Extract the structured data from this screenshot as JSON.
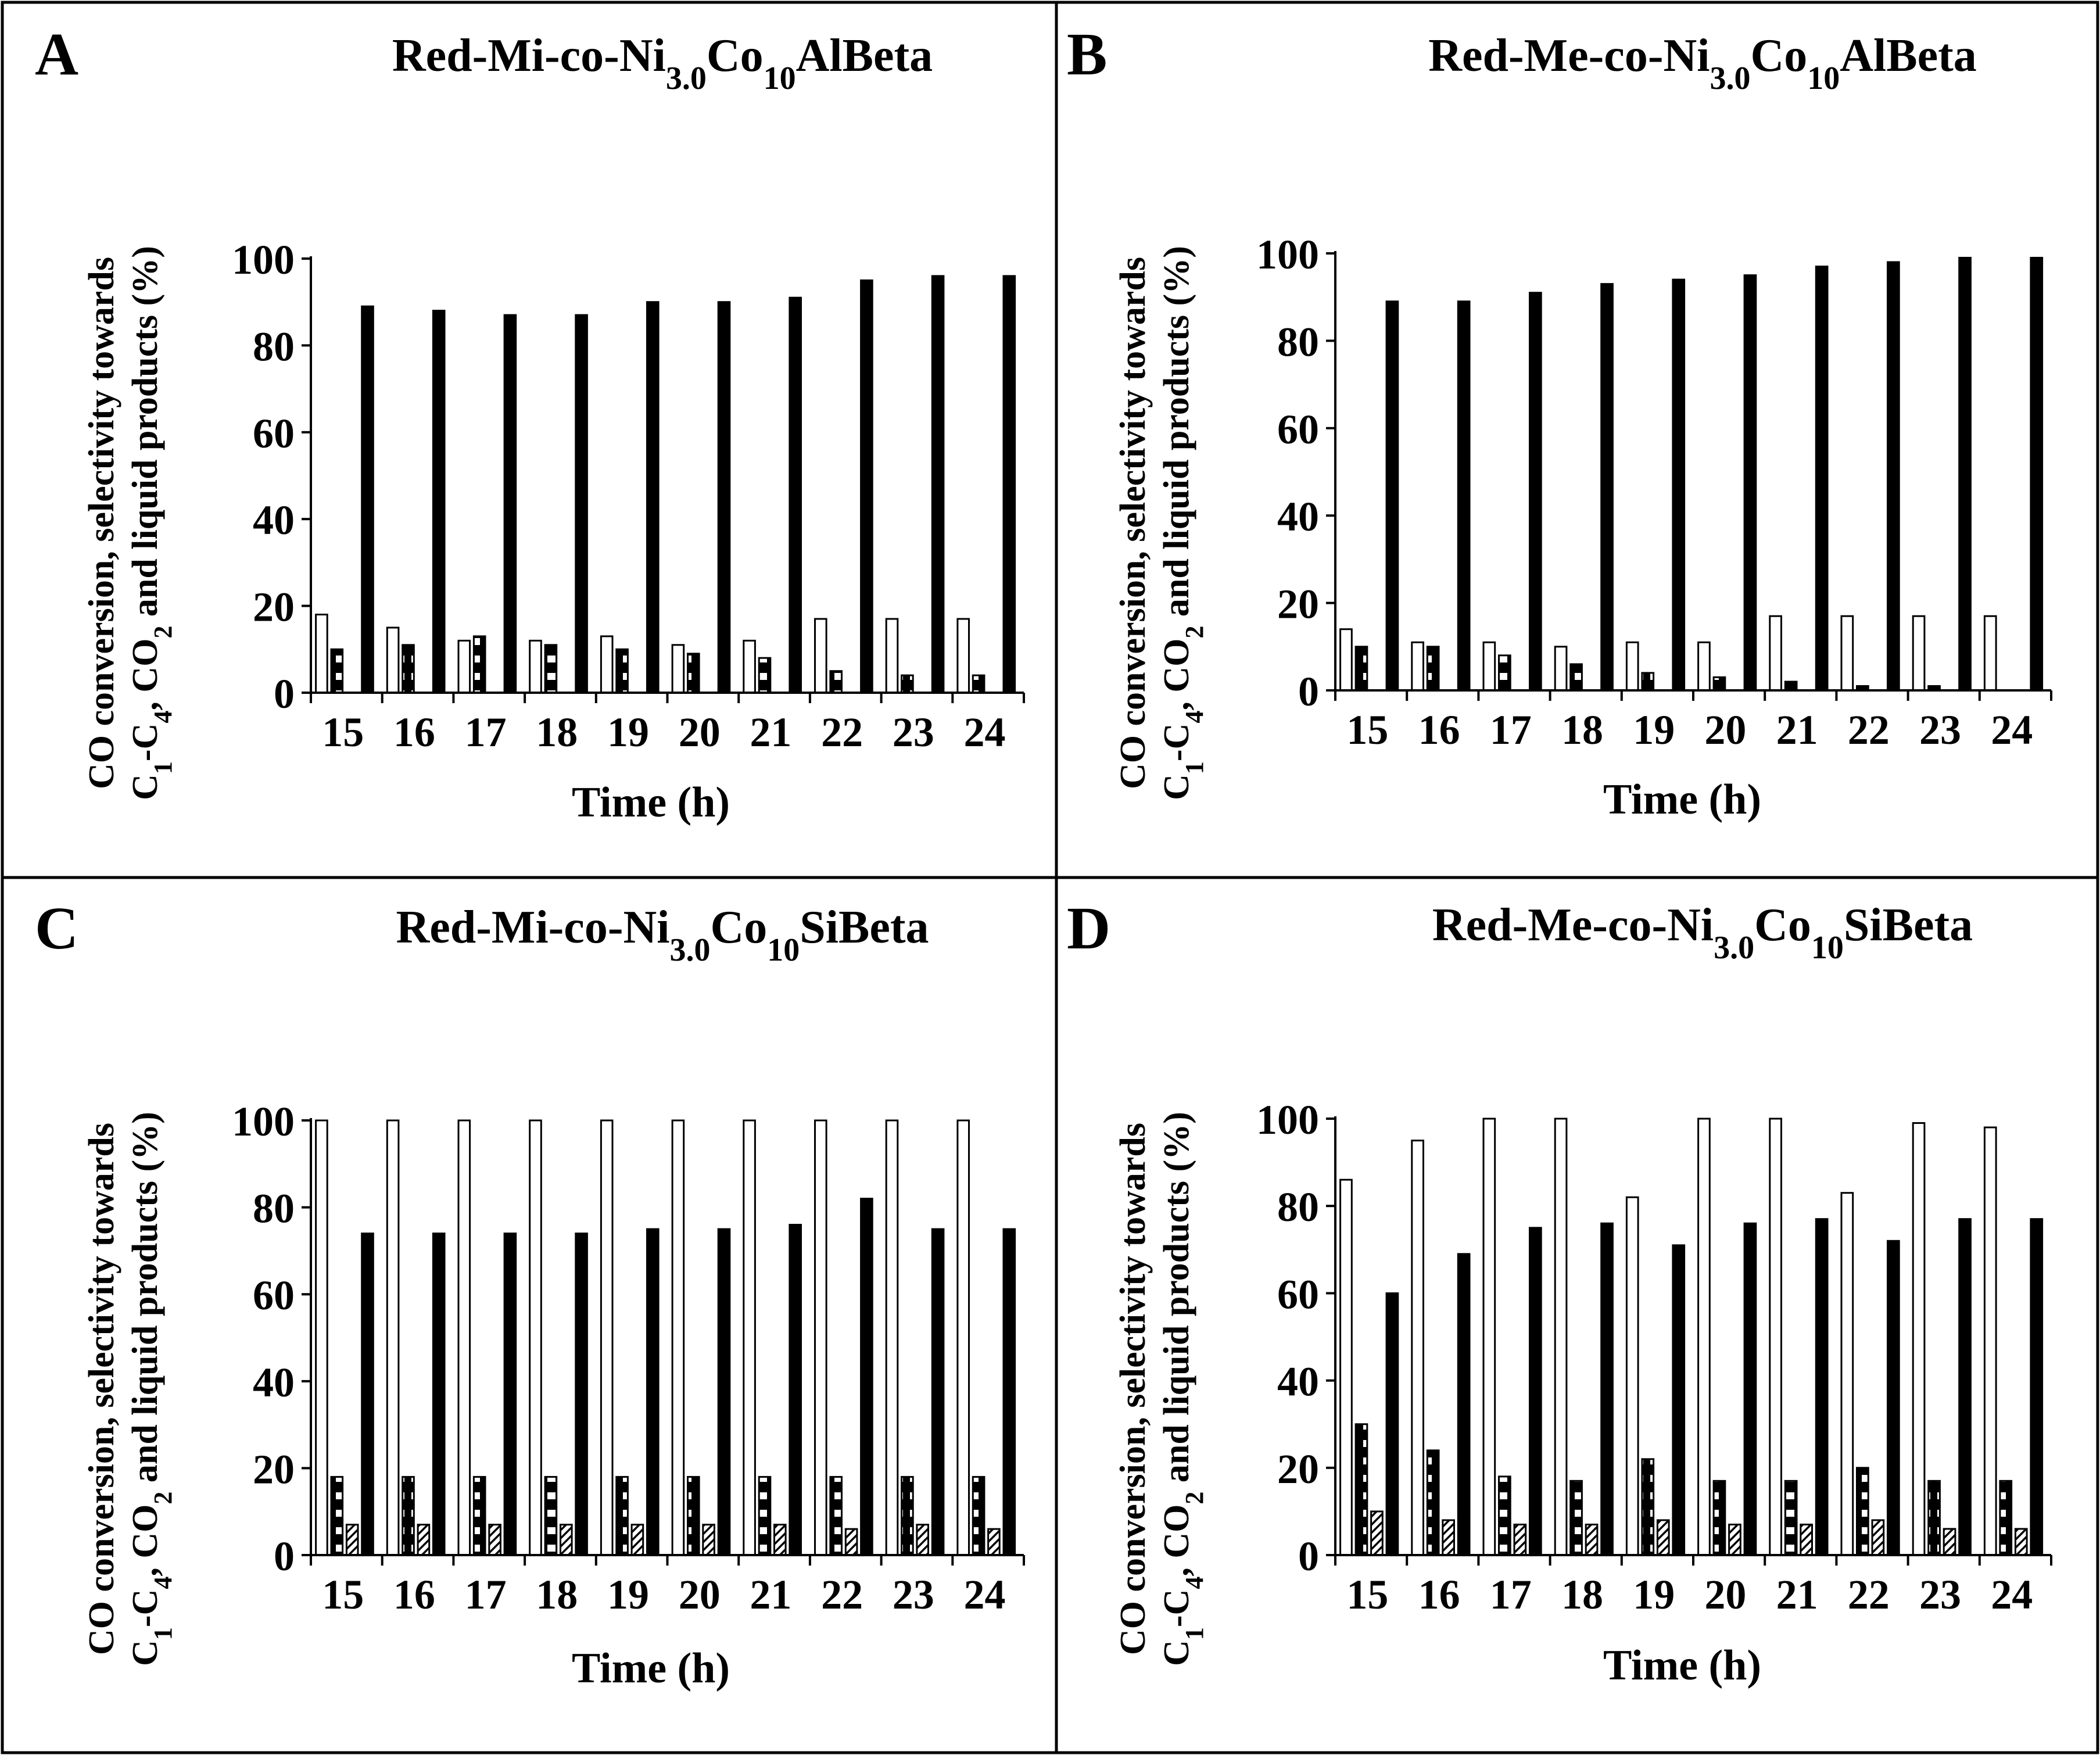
{
  "chart_data": [
    {
      "type": "bar",
      "letter": "A",
      "title": {
        "prefix": "Red-Mi-co-Ni",
        "sub1": "3.0",
        "mid": "Co",
        "sub2": "10",
        "suffix": "AlBeta"
      },
      "ylabel_line1": "CO conversion, selectivity towards",
      "ylabel_line2": {
        "p1": "C",
        "s1": "1",
        "p2": "-C",
        "s2": "4",
        "p3": ", CO",
        "s3": "2",
        "p4": " and liquid products (%)"
      },
      "xlabel": "Time (h)",
      "categories": [
        "15",
        "16",
        "17",
        "18",
        "19",
        "20",
        "21",
        "22",
        "23",
        "24"
      ],
      "yticks": [
        "0",
        "20",
        "40",
        "60",
        "80",
        "100"
      ],
      "ylim": [
        0,
        100
      ],
      "series": [
        {
          "name": "CO conversion",
          "pattern": "white",
          "values": [
            18,
            15,
            12,
            12,
            13,
            11,
            12,
            17,
            17,
            17
          ]
        },
        {
          "name": "C1-C4 selectivity",
          "pattern": "stacked",
          "values": [
            10,
            11,
            13,
            11,
            10,
            9,
            8,
            5,
            4,
            4
          ]
        },
        {
          "name": "CO2 selectivity",
          "pattern": "hatch",
          "values": [
            0,
            0,
            0,
            0,
            0,
            0,
            0,
            0,
            0,
            0
          ]
        },
        {
          "name": "Liquid products selectivity",
          "pattern": "black",
          "values": [
            89,
            88,
            87,
            87,
            90,
            90,
            91,
            95,
            96,
            96
          ]
        }
      ]
    },
    {
      "type": "bar",
      "letter": "B",
      "title": {
        "prefix": "Red-Me-co-Ni",
        "sub1": "3.0",
        "mid": "Co",
        "sub2": "10",
        "suffix": "AlBeta"
      },
      "ylabel_line1": "CO conversion, selectivity towards",
      "ylabel_line2": {
        "p1": "C",
        "s1": "1",
        "p2": "-C",
        "s2": "4",
        "p3": ", CO",
        "s3": "2",
        "p4": " and liquid products (%)"
      },
      "xlabel": "Time (h)",
      "categories": [
        "15",
        "16",
        "17",
        "18",
        "19",
        "20",
        "21",
        "22",
        "23",
        "24"
      ],
      "yticks": [
        "0",
        "20",
        "40",
        "60",
        "80",
        "100"
      ],
      "ylim": [
        0,
        100
      ],
      "series": [
        {
          "name": "CO conversion",
          "pattern": "white",
          "values": [
            14,
            11,
            11,
            10,
            11,
            11,
            17,
            17,
            17,
            17
          ]
        },
        {
          "name": "C1-C4 selectivity",
          "pattern": "stacked",
          "values": [
            10,
            10,
            8,
            6,
            4,
            3,
            2,
            1,
            1,
            0
          ]
        },
        {
          "name": "CO2 selectivity",
          "pattern": "hatch",
          "values": [
            0,
            0,
            0,
            0,
            0,
            0,
            0,
            0,
            0,
            0
          ]
        },
        {
          "name": "Liquid products selectivity",
          "pattern": "black",
          "values": [
            89,
            89,
            91,
            93,
            94,
            95,
            97,
            98,
            99,
            99
          ]
        }
      ]
    },
    {
      "type": "bar",
      "letter": "C",
      "title": {
        "prefix": "Red-Mi-co-Ni",
        "sub1": "3.0",
        "mid": "Co",
        "sub2": "10",
        "suffix": "SiBeta"
      },
      "ylabel_line1": "CO conversion, selectivity towards",
      "ylabel_line2": {
        "p1": "C",
        "s1": "1",
        "p2": "-C",
        "s2": "4",
        "p3": ", CO",
        "s3": "2",
        "p4": " and liquid products (%)"
      },
      "xlabel": "Time (h)",
      "categories": [
        "15",
        "16",
        "17",
        "18",
        "19",
        "20",
        "21",
        "22",
        "23",
        "24"
      ],
      "yticks": [
        "0",
        "20",
        "40",
        "60",
        "80",
        "100"
      ],
      "ylim": [
        0,
        100
      ],
      "series": [
        {
          "name": "CO conversion",
          "pattern": "white",
          "values": [
            100,
            100,
            100,
            100,
            100,
            100,
            100,
            100,
            100,
            100
          ]
        },
        {
          "name": "C1-C4 selectivity",
          "pattern": "stacked",
          "values": [
            18,
            18,
            18,
            18,
            18,
            18,
            18,
            18,
            18,
            18
          ]
        },
        {
          "name": "CO2 selectivity",
          "pattern": "hatch",
          "values": [
            7,
            7,
            7,
            7,
            7,
            7,
            7,
            6,
            7,
            6
          ]
        },
        {
          "name": "Liquid products selectivity",
          "pattern": "black",
          "values": [
            74,
            74,
            74,
            74,
            75,
            75,
            76,
            82,
            75,
            75
          ]
        }
      ]
    },
    {
      "type": "bar",
      "letter": "D",
      "title": {
        "prefix": "Red-Me-co-Ni",
        "sub1": "3.0",
        "mid": "Co",
        "sub2": "10",
        "suffix": "SiBeta"
      },
      "ylabel_line1": "CO conversion, selectivity towards",
      "ylabel_line2": {
        "p1": "C",
        "s1": "1",
        "p2": "-C",
        "s2": "4",
        "p3": ", CO",
        "s3": "2",
        "p4": " and liquid products (%)"
      },
      "xlabel": "Time (h)",
      "categories": [
        "15",
        "16",
        "17",
        "18",
        "19",
        "20",
        "21",
        "22",
        "23",
        "24"
      ],
      "yticks": [
        "0",
        "20",
        "40",
        "60",
        "80",
        "100"
      ],
      "ylim": [
        0,
        100
      ],
      "series": [
        {
          "name": "CO conversion",
          "pattern": "white",
          "values": [
            86,
            95,
            100,
            100,
            82,
            100,
            100,
            83,
            99,
            98
          ]
        },
        {
          "name": "C1-C4 selectivity",
          "pattern": "stacked",
          "values": [
            30,
            24,
            18,
            17,
            22,
            17,
            17,
            20,
            17,
            17
          ]
        },
        {
          "name": "CO2 selectivity",
          "pattern": "hatch",
          "values": [
            10,
            8,
            7,
            7,
            8,
            7,
            7,
            8,
            6,
            6
          ]
        },
        {
          "name": "Liquid products selectivity",
          "pattern": "black",
          "values": [
            60,
            69,
            75,
            76,
            71,
            76,
            77,
            72,
            77,
            77
          ]
        }
      ]
    }
  ]
}
